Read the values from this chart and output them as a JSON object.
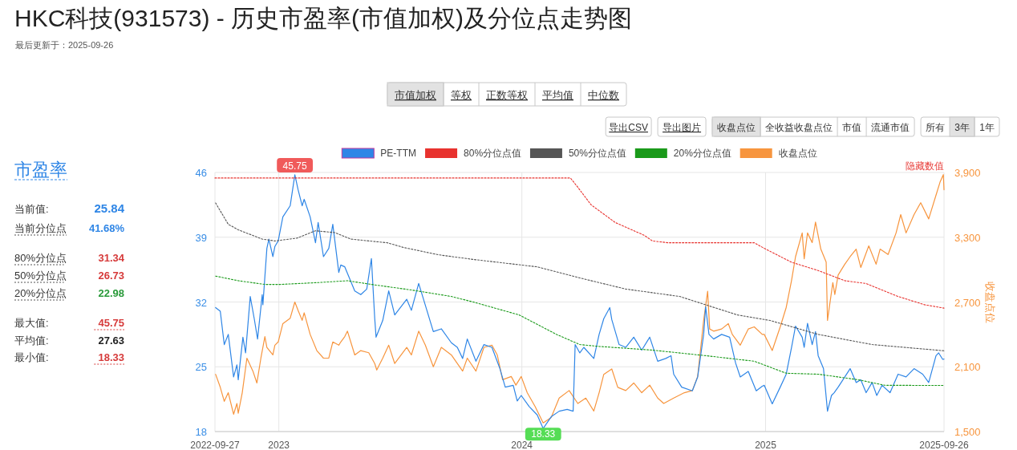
{
  "chart_data": [
    {
      "type": "other",
      "title": "HKC科技(931573) - 历史市盈率(市值加权)及分位点走势图",
      "subtitle": "最后更新于：2025-09-26"
    },
    {
      "type": "line",
      "y2label": "收盘点位",
      "xlim": [
        "2022-09-27",
        "2025-09-26"
      ],
      "xticks": [
        "2022-09-27",
        "2023",
        "2024",
        "2025",
        "2025-09-26"
      ],
      "ylim": [
        18,
        46
      ],
      "yticks": [
        18,
        25,
        32,
        39,
        46
      ],
      "y2lim": [
        1500,
        3900
      ],
      "y2ticks": [
        {
          "value": 1500,
          "label": "1,500"
        },
        {
          "value": 2100,
          "label": "2,100"
        },
        {
          "value": 2700,
          "label": "2,700"
        },
        {
          "value": 3300,
          "label": "3,300"
        },
        {
          "value": 3900,
          "label": "3,900"
        }
      ],
      "grid": true,
      "legend": "top",
      "marker": "none",
      "annotations": [
        {
          "text": "45.75",
          "x": "2023-01-25",
          "y": 45.75
        },
        {
          "text": "18.33",
          "x": "2024-02-02",
          "y": 18.33
        },
        "隐藏数值"
      ],
      "series": [
        {
          "name": "PE-TTM",
          "color": "#2f86e6",
          "line_style": "solid",
          "x": [
            "2022-09-28",
            "2022-10-05",
            "2022-10-11",
            "2022-10-17",
            "2022-10-25",
            "2022-10-30",
            "2022-11-01",
            "2022-11-08",
            "2022-11-12",
            "2022-11-19",
            "2022-11-25",
            "2022-11-30",
            "2022-12-07",
            "2022-12-08",
            "2022-12-14",
            "2022-12-17",
            "2022-12-23",
            "2022-12-26",
            "2022-12-31",
            "2023-01-07",
            "2023-01-18",
            "2023-01-25",
            "2023-01-30",
            "2023-02-05",
            "2023-02-08",
            "2023-02-17",
            "2023-02-25",
            "2023-03-01",
            "2023-03-09",
            "2023-03-17",
            "2023-03-23",
            "2023-04-01",
            "2023-04-04",
            "2023-04-10",
            "2023-04-25",
            "2023-05-04",
            "2023-05-13",
            "2023-05-20",
            "2023-05-25",
            "2023-05-27",
            "2023-06-06",
            "2023-06-15",
            "2023-06-24",
            "2023-07-12",
            "2023-07-19",
            "2023-07-30",
            "2023-08-05",
            "2023-08-21",
            "2023-09-02",
            "2023-09-17",
            "2023-09-26",
            "2023-10-04",
            "2023-10-11",
            "2023-10-24",
            "2023-11-05",
            "2023-11-17",
            "2023-11-29",
            "2023-12-07",
            "2023-12-19",
            "2023-12-25",
            "2023-12-31",
            "2024-01-12",
            "2024-01-24",
            "2024-02-02",
            "2024-02-14",
            "2024-02-26",
            "2024-03-09",
            "2024-03-18",
            "2024-03-21",
            "2024-03-28",
            "2024-04-03",
            "2024-04-18",
            "2024-04-26",
            "2024-05-03",
            "2024-05-12",
            "2024-05-15",
            "2024-05-26",
            "2024-06-05",
            "2024-06-17",
            "2024-06-29",
            "2024-07-11",
            "2024-07-23",
            "2024-08-04",
            "2024-08-12",
            "2024-08-16",
            "2024-08-28",
            "2024-09-13",
            "2024-09-21",
            "2024-09-30",
            "2024-10-03",
            "2024-10-08",
            "2024-10-15",
            "2024-10-27",
            "2024-11-08",
            "2024-11-17",
            "2024-11-24",
            "2024-12-06",
            "2024-12-18",
            "2024-12-27",
            "2024-12-30",
            "2025-01-11",
            "2025-01-23",
            "2025-02-01",
            "2025-02-09",
            "2025-02-15",
            "2025-02-25",
            "2025-02-28",
            "2025-03-05",
            "2025-03-12",
            "2025-03-17",
            "2025-03-21",
            "2025-03-29",
            "2025-04-04",
            "2025-04-10",
            "2025-04-14",
            "2025-04-20",
            "2025-04-30",
            "2025-05-08",
            "2025-05-17",
            "2025-05-24",
            "2025-06-01",
            "2025-06-10",
            "2025-06-17",
            "2025-06-25",
            "2025-07-07",
            "2025-07-19",
            "2025-07-31",
            "2025-08-12",
            "2025-08-25",
            "2025-09-03",
            "2025-09-14",
            "2025-09-18",
            "2025-09-24",
            "2025-09-26"
          ],
          "values": [
            31.4,
            31.0,
            27.4,
            28.5,
            23.9,
            25.2,
            23.6,
            28.2,
            26.5,
            32.6,
            30.2,
            28.0,
            32.8,
            31.7,
            37.8,
            38.8,
            36.9,
            38.0,
            38.6,
            41.2,
            42.4,
            45.75,
            44.1,
            42.4,
            43.1,
            41.2,
            38.4,
            40.6,
            36.9,
            37.8,
            40.4,
            35.2,
            36.0,
            35.8,
            33.2,
            32.8,
            33.4,
            36.7,
            30.2,
            28.2,
            30.0,
            33.2,
            30.6,
            32.3,
            31.1,
            34.0,
            32.6,
            28.8,
            29.1,
            27.6,
            27.1,
            25.9,
            28.0,
            25.6,
            27.4,
            27.1,
            24.8,
            22.8,
            23.0,
            21.3,
            21.9,
            20.7,
            19.8,
            18.33,
            19.6,
            20.2,
            20.4,
            20.2,
            27.4,
            26.5,
            27.1,
            25.9,
            28.5,
            30.2,
            31.4,
            30.1,
            27.4,
            27.1,
            28.2,
            26.8,
            28.2,
            25.6,
            25.9,
            26.2,
            24.2,
            22.8,
            22.4,
            23.9,
            28.5,
            31.5,
            28.5,
            28.0,
            28.5,
            28.2,
            25.4,
            23.9,
            24.5,
            22.4,
            22.9,
            23.0,
            21.0,
            22.8,
            24.2,
            27.1,
            29.4,
            28.2,
            27.1,
            29.7,
            27.4,
            28.8,
            26.2,
            24.8,
            20.2,
            21.9,
            22.2,
            22.8,
            23.9,
            24.8,
            23.3,
            23.6,
            22.2,
            23.3,
            21.9,
            23.0,
            22.2,
            24.2,
            23.9,
            24.8,
            24.2,
            23.3,
            26.2,
            26.5,
            25.8,
            25.84
          ]
        },
        {
          "name": "80%分位点值",
          "color": "#e8322e",
          "line_style": "dotted",
          "x": [
            "2022-09-27",
            "2024-03-14",
            "2024-03-25",
            "2024-04-14",
            "2024-05-20",
            "2024-07-03",
            "2024-07-15",
            "2024-08-08",
            "2024-12-15",
            "2024-12-30",
            "2025-02-09",
            "2025-03-21",
            "2025-04-30",
            "2025-06-01",
            "2025-07-19",
            "2025-08-28",
            "2025-09-26"
          ],
          "values": [
            45.4,
            45.4,
            44.4,
            42.5,
            40.6,
            39.2,
            38.6,
            38.4,
            38.4,
            37.8,
            36.3,
            35.4,
            34.3,
            34.0,
            32.6,
            31.7,
            31.34
          ]
        },
        {
          "name": "50%分位点值",
          "color": "#555555",
          "line_style": "dotted",
          "x": [
            "2022-09-28",
            "2022-10-17",
            "2022-11-01",
            "2022-12-07",
            "2022-12-26",
            "2023-01-28",
            "2023-02-25",
            "2023-03-26",
            "2023-04-19",
            "2023-06-13",
            "2023-07-07",
            "2023-08-29",
            "2023-10-20",
            "2024-01-24",
            "2024-03-28",
            "2024-06-05",
            "2024-08-25",
            "2024-10-03",
            "2024-11-20",
            "2025-01-08",
            "2025-03-21",
            "2025-06-10",
            "2025-09-26"
          ],
          "values": [
            42.7,
            40.4,
            39.8,
            38.8,
            38.6,
            38.9,
            39.7,
            39.5,
            38.8,
            38.4,
            37.9,
            37.1,
            36.6,
            35.8,
            34.6,
            33.4,
            32.6,
            31.7,
            30.6,
            30.0,
            28.5,
            27.4,
            26.73
          ]
        },
        {
          "name": "20%分位点值",
          "color": "#1a9a1a",
          "line_style": "dotted",
          "x": [
            "2022-09-28",
            "2022-11-01",
            "2022-12-11",
            "2023-01-03",
            "2023-03-01",
            "2023-04-14",
            "2023-05-20",
            "2023-07-19",
            "2023-09-17",
            "2023-10-20",
            "2023-12-28",
            "2024-02-22",
            "2024-03-28",
            "2024-04-26",
            "2024-07-15",
            "2024-10-03",
            "2024-12-15",
            "2025-02-01",
            "2025-03-21",
            "2025-05-20",
            "2025-06-29",
            "2025-09-26"
          ],
          "values": [
            34.8,
            34.3,
            33.9,
            33.9,
            34.1,
            34.3,
            33.9,
            33.3,
            32.6,
            32.0,
            30.6,
            28.5,
            27.4,
            27.2,
            26.8,
            26.2,
            25.6,
            24.3,
            24.2,
            23.6,
            23.0,
            22.98
          ]
        },
        {
          "name": "收盘点位",
          "color": "#f7953e",
          "line_style": "solid",
          "axis": "y2",
          "x": [
            "2022-09-28",
            "2022-10-05",
            "2022-10-11",
            "2022-10-17",
            "2022-10-25",
            "2022-10-30",
            "2022-11-01",
            "2022-11-07",
            "2022-11-14",
            "2022-11-23",
            "2022-11-29",
            "2022-12-05",
            "2022-12-11",
            "2022-12-14",
            "2022-12-23",
            "2022-12-26",
            "2022-12-31",
            "2023-01-07",
            "2023-01-18",
            "2023-01-25",
            "2023-01-30",
            "2023-02-05",
            "2023-02-08",
            "2023-02-17",
            "2023-02-27",
            "2023-03-09",
            "2023-03-17",
            "2023-03-23",
            "2023-04-01",
            "2023-04-04",
            "2023-04-10",
            "2023-04-14",
            "2023-04-25",
            "2023-05-04",
            "2023-05-16",
            "2023-05-25",
            "2023-05-28",
            "2023-06-06",
            "2023-06-15",
            "2023-06-24",
            "2023-07-12",
            "2023-07-19",
            "2023-07-30",
            "2023-08-09",
            "2023-08-21",
            "2023-09-02",
            "2023-09-17",
            "2023-10-04",
            "2023-10-11",
            "2023-10-24",
            "2023-11-05",
            "2023-11-17",
            "2023-11-25",
            "2023-12-03",
            "2023-12-16",
            "2023-12-23",
            "2023-12-31",
            "2024-01-09",
            "2024-01-21",
            "2024-02-02",
            "2024-02-14",
            "2024-02-26",
            "2024-03-12",
            "2024-03-25",
            "2024-04-06",
            "2024-04-18",
            "2024-04-26",
            "2024-05-03",
            "2024-05-15",
            "2024-05-24",
            "2024-06-05",
            "2024-06-17",
            "2024-06-29",
            "2024-07-11",
            "2024-07-23",
            "2024-08-01",
            "2024-08-16",
            "2024-09-01",
            "2024-09-13",
            "2024-09-21",
            "2024-09-30",
            "2024-10-06",
            "2024-10-09",
            "2024-10-15",
            "2024-10-27",
            "2024-11-06",
            "2024-11-12",
            "2024-11-24",
            "2024-12-06",
            "2024-12-15",
            "2024-12-27",
            "2024-12-30",
            "2025-01-11",
            "2025-01-23",
            "2025-02-01",
            "2025-02-09",
            "2025-02-15",
            "2025-02-25",
            "2025-02-28",
            "2025-03-05",
            "2025-03-12",
            "2025-03-17",
            "2025-03-25",
            "2025-04-02",
            "2025-04-04",
            "2025-04-12",
            "2025-04-15",
            "2025-04-20",
            "2025-04-30",
            "2025-05-08",
            "2025-05-17",
            "2025-05-24",
            "2025-06-05",
            "2025-06-16",
            "2025-06-22",
            "2025-07-04",
            "2025-07-16",
            "2025-07-23",
            "2025-07-31",
            "2025-08-12",
            "2025-08-22",
            "2025-09-03",
            "2025-09-14",
            "2025-09-20",
            "2025-09-25",
            "2025-09-26"
          ],
          "values": [
            2030,
            1910,
            1780,
            1860,
            1660,
            1760,
            1670,
            1860,
            2180,
            2060,
            1950,
            2180,
            2380,
            2280,
            2210,
            2300,
            2330,
            2500,
            2550,
            2700,
            2620,
            2530,
            2600,
            2400,
            2250,
            2180,
            2180,
            2330,
            2300,
            2330,
            2380,
            2430,
            2210,
            2250,
            2230,
            2130,
            2070,
            2180,
            2300,
            2130,
            2280,
            2210,
            2430,
            2300,
            2100,
            2280,
            2210,
            2060,
            2180,
            2060,
            2280,
            2300,
            2210,
            1980,
            2010,
            1930,
            2010,
            1860,
            1730,
            1580,
            1630,
            1810,
            1880,
            1760,
            1810,
            1690,
            1860,
            2030,
            2080,
            1910,
            1880,
            1950,
            1860,
            1930,
            1810,
            1760,
            1810,
            1860,
            1880,
            2010,
            2530,
            2800,
            2450,
            2430,
            2450,
            2500,
            2400,
            2300,
            2450,
            2470,
            2400,
            2400,
            2250,
            2470,
            2650,
            2900,
            3120,
            3340,
            3100,
            3340,
            3250,
            3440,
            3190,
            3070,
            2530,
            2880,
            2770,
            2950,
            3050,
            3120,
            3190,
            3020,
            3220,
            3050,
            3190,
            3140,
            3340,
            3510,
            3340,
            3510,
            3620,
            3470,
            3690,
            3810,
            3880,
            3740
          ]
        }
      ]
    },
    {
      "type": "other",
      "annotations": [
        "市值加权",
        "等权",
        "正数等权",
        "平均值",
        "中位数",
        "导出CSV",
        "导出图片",
        "收盘点位",
        "全收益收盘点位",
        "市值",
        "流通市值",
        "所有",
        "3年",
        "1年"
      ]
    },
    {
      "type": "other",
      "title": "市盈率",
      "annotations": [
        "当前值:",
        "25.84",
        "当前分位点",
        "41.68%",
        "80%分位点",
        "31.34",
        "50%分位点",
        "26.73",
        "20%分位点",
        "22.98",
        "最大值:",
        "45.75",
        "平均值:",
        "27.63",
        "最小值:",
        "18.33"
      ]
    }
  ]
}
